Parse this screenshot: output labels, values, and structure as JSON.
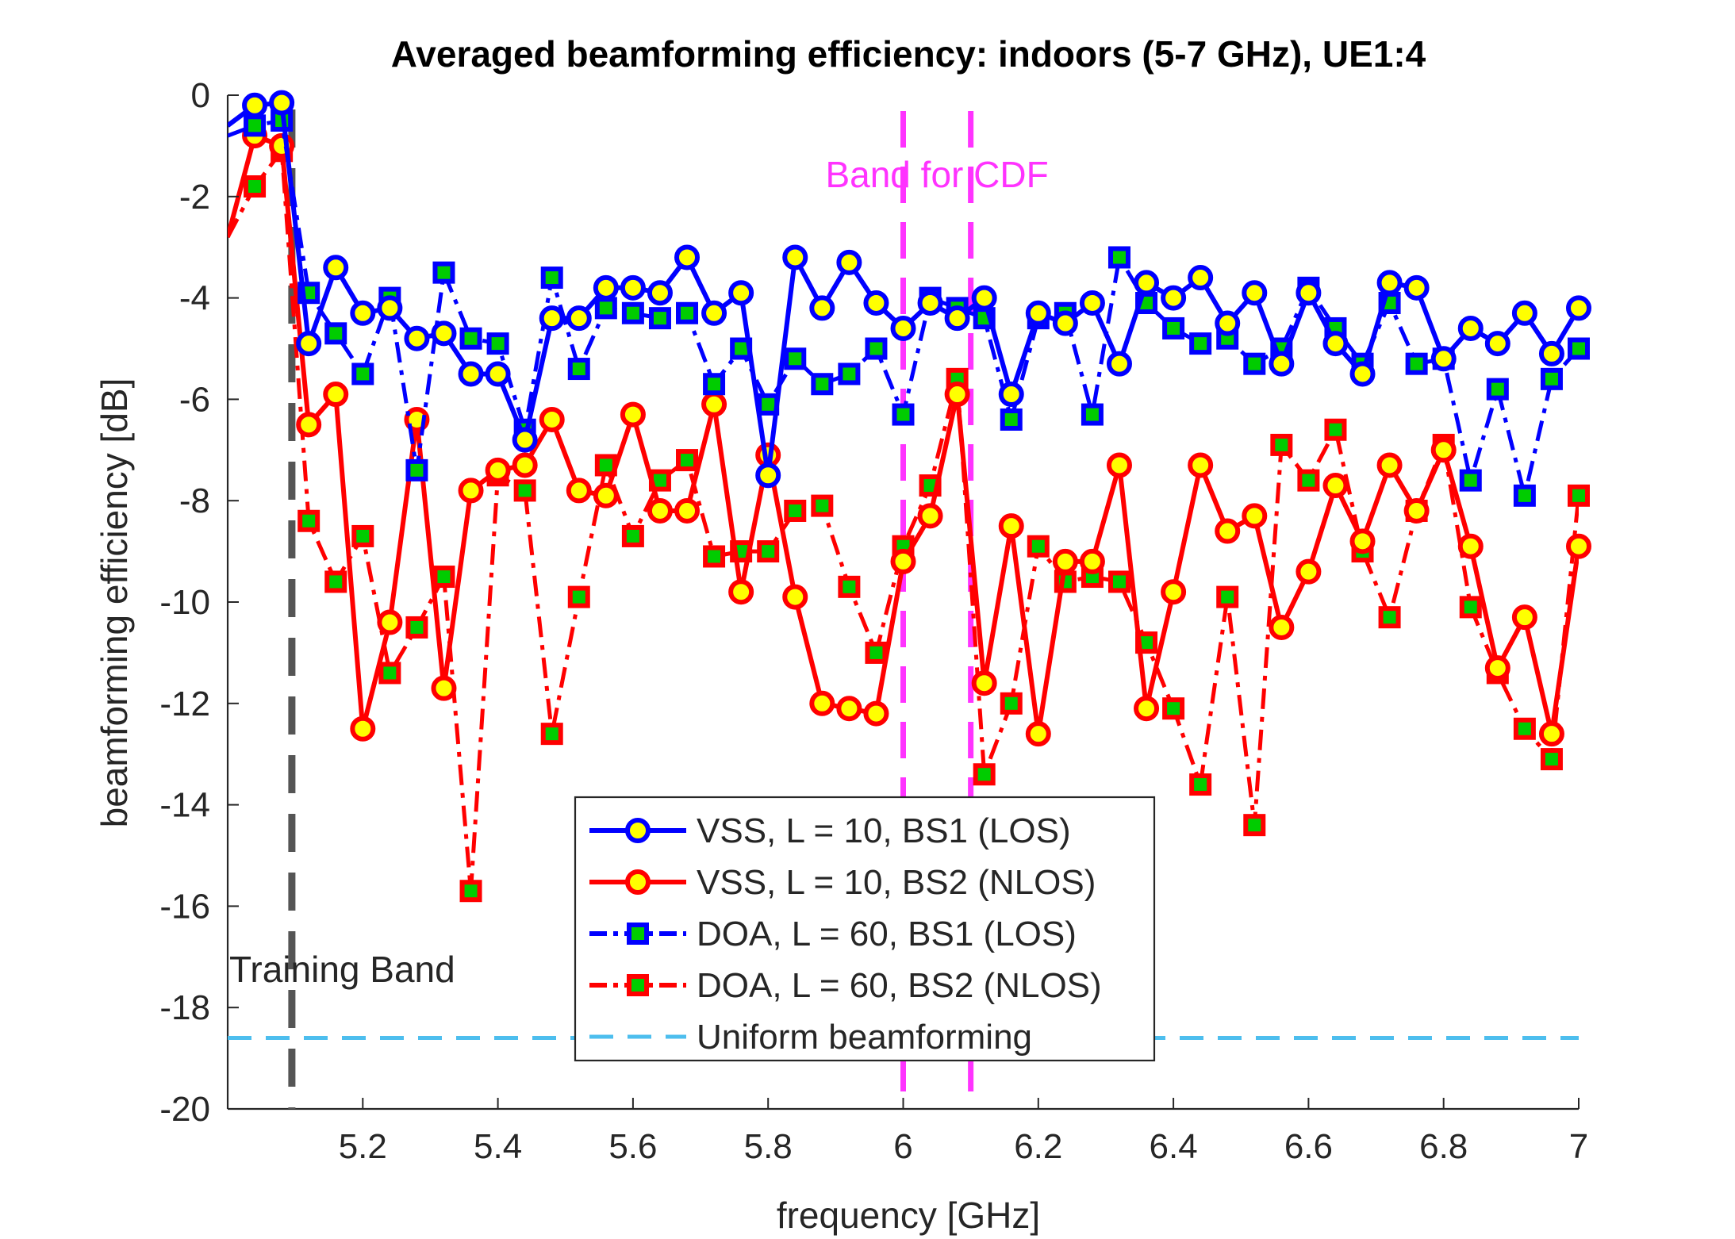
{
  "chart_data": {
    "type": "line",
    "title": "Averaged beamforming efficiency: indoors (5-7 GHz), UE1:4",
    "xlabel": "frequency [GHz]",
    "ylabel": "beamforming efficiency [dB]",
    "xlim": [
      5.0,
      7.0
    ],
    "ylim": [
      -20,
      0
    ],
    "xticks": [
      5.2,
      5.4,
      5.6,
      5.8,
      6,
      6.2,
      6.4,
      6.6,
      6.8,
      7
    ],
    "xtick_labels": [
      "5.2",
      "5.4",
      "5.6",
      "5.8",
      "6",
      "6.2",
      "6.4",
      "6.6",
      "6.8",
      "7"
    ],
    "yticks": [
      0,
      -2,
      -4,
      -6,
      -8,
      -10,
      -12,
      -14,
      -16,
      -18,
      -20
    ],
    "ytick_labels": [
      "0",
      "-2",
      "-4",
      "-6",
      "-8",
      "-10",
      "-12",
      "-14",
      "-16",
      "-18",
      "-20"
    ],
    "grid": false,
    "legend_position": "bottom-center",
    "x": [
      5.0,
      5.04,
      5.08,
      5.12,
      5.16,
      5.2,
      5.24,
      5.28,
      5.32,
      5.36,
      5.4,
      5.44,
      5.48,
      5.52,
      5.56,
      5.6,
      5.64,
      5.68,
      5.72,
      5.76,
      5.8,
      5.84,
      5.88,
      5.92,
      5.96,
      6.0,
      6.04,
      6.08,
      6.12,
      6.16,
      6.2,
      6.24,
      6.28,
      6.32,
      6.36,
      6.4,
      6.44,
      6.48,
      6.52,
      6.56,
      6.6,
      6.64,
      6.68,
      6.72,
      6.76,
      6.8,
      6.84,
      6.88,
      6.92,
      6.96,
      7.0
    ],
    "series": [
      {
        "name": "VSS, L = 10, BS1 (LOS)",
        "color": "#0000ff",
        "style": "solid",
        "marker": "circle",
        "values": [
          -0.6,
          -0.2,
          -0.15,
          -4.9,
          -3.4,
          -4.3,
          -4.2,
          -4.8,
          -4.7,
          -5.5,
          -5.5,
          -6.8,
          -4.4,
          -4.4,
          -3.8,
          -3.8,
          -3.9,
          -3.2,
          -4.3,
          -3.9,
          -7.5,
          -3.2,
          -4.2,
          -3.3,
          -4.1,
          -4.6,
          -4.1,
          -4.4,
          -4.0,
          -5.9,
          -4.3,
          -4.5,
          -4.1,
          -5.3,
          -3.7,
          -4.0,
          -3.6,
          -4.5,
          -3.9,
          -5.3,
          -3.9,
          -4.9,
          -5.5,
          -3.7,
          -3.8,
          -5.2,
          -4.6,
          -4.9,
          -4.3,
          -5.1,
          -4.2
        ]
      },
      {
        "name": "VSS, L = 10, BS2 (NLOS)",
        "color": "#ff0000",
        "style": "solid",
        "marker": "circle",
        "values": [
          -2.8,
          -0.8,
          -1.0,
          -6.5,
          -5.9,
          -12.5,
          -10.4,
          -6.4,
          -11.7,
          -7.8,
          -7.4,
          -7.3,
          -6.4,
          -7.8,
          -7.9,
          -6.3,
          -8.2,
          -8.2,
          -6.1,
          -9.8,
          -7.1,
          -9.9,
          -12.0,
          -12.1,
          -12.2,
          -9.2,
          -8.3,
          -5.9,
          -11.6,
          -8.5,
          -12.6,
          -9.2,
          -9.2,
          -7.3,
          -12.1,
          -9.8,
          -7.3,
          -8.6,
          -8.3,
          -10.5,
          -9.4,
          -7.7,
          -8.8,
          -7.3,
          -8.2,
          -7.0,
          -8.9,
          -11.3,
          -10.3,
          -12.6,
          -8.9
        ]
      },
      {
        "name": "DOA, L = 60, BS1 (LOS)",
        "color": "#0000ff",
        "style": "dashdot",
        "marker": "square",
        "values": [
          -0.8,
          -0.6,
          -0.5,
          -3.9,
          -4.7,
          -5.5,
          -4.0,
          -7.4,
          -3.5,
          -4.8,
          -4.9,
          -6.6,
          -3.6,
          -5.4,
          -4.2,
          -4.3,
          -4.4,
          -4.3,
          -5.7,
          -5.0,
          -6.1,
          -5.2,
          -5.7,
          -5.5,
          -5.0,
          -6.3,
          -4.0,
          -4.2,
          -4.4,
          -6.4,
          -4.4,
          -4.3,
          -6.3,
          -3.2,
          -4.1,
          -4.6,
          -4.9,
          -4.8,
          -5.3,
          -5.0,
          -3.8,
          -4.6,
          -5.3,
          -4.1,
          -5.3,
          -5.2,
          -7.6,
          -5.8,
          -7.9,
          -5.6,
          -5.0
        ]
      },
      {
        "name": "DOA, L = 60, BS2 (NLOS)",
        "color": "#ff0000",
        "style": "dashdot",
        "marker": "square",
        "values": [
          -2.8,
          -1.8,
          -1.1,
          -8.4,
          -9.6,
          -8.7,
          -11.4,
          -10.5,
          -9.5,
          -15.7,
          -7.5,
          -7.8,
          -12.6,
          -9.9,
          -7.3,
          -8.7,
          -7.6,
          -7.2,
          -9.1,
          -9.0,
          -9.0,
          -8.2,
          -8.1,
          -9.7,
          -11.0,
          -8.9,
          -7.7,
          -5.6,
          -13.4,
          -12.0,
          -8.9,
          -9.6,
          -9.5,
          -9.6,
          -10.8,
          -12.1,
          -13.6,
          -9.9,
          -14.4,
          -6.9,
          -7.6,
          -6.6,
          -9.0,
          -10.3,
          -8.2,
          -6.9,
          -10.1,
          -11.4,
          -12.5,
          -13.1,
          -7.9
        ]
      }
    ],
    "uniform_beamforming": {
      "name": "Uniform beamforming",
      "value": -18.6,
      "color": "#4dbeee"
    },
    "training_band": {
      "label": "Training Band",
      "x": 5.095,
      "color": "#555555"
    },
    "cdf_band": {
      "label": "Band for CDF",
      "x_range": [
        6.0,
        6.1
      ],
      "color": "#ff33ff"
    }
  }
}
